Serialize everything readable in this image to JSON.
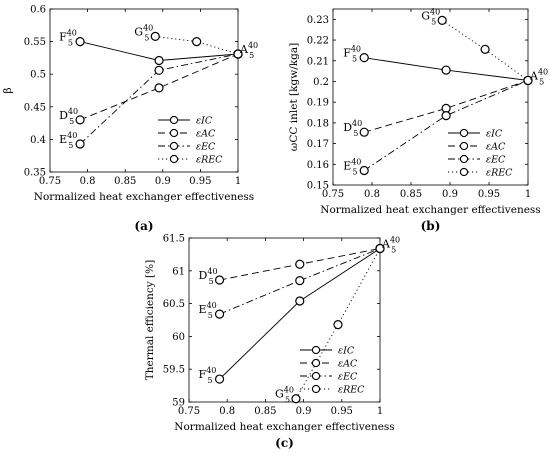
{
  "chart_data": [
    {
      "type": "line",
      "panel_label": "(a)",
      "xlabel": "Normalized heat exchanger effectiveness",
      "ylabel": "β",
      "xlim": [
        0.75,
        1.0
      ],
      "ylim": [
        0.35,
        0.6
      ],
      "xticks": [
        "0.75",
        "0.8",
        "0.85",
        "0.9",
        "0.95",
        "1"
      ],
      "yticks": [
        "0.35",
        "0.4",
        "0.45",
        "0.5",
        "0.55",
        "0.6"
      ],
      "legend": {
        "placement": "bottom-right",
        "entries": [
          "εIC",
          "εAC",
          "εEC",
          "εREC"
        ]
      },
      "series": [
        {
          "name": "εIC",
          "style": "solid",
          "x": [
            0.79,
            0.895,
            1.0
          ],
          "y": [
            0.55,
            0.521,
            0.531
          ]
        },
        {
          "name": "εAC",
          "style": "dashed",
          "x": [
            0.79,
            0.895,
            1.0
          ],
          "y": [
            0.43,
            0.479,
            0.531
          ]
        },
        {
          "name": "εEC",
          "style": "dashdot",
          "x": [
            0.79,
            0.895,
            1.0
          ],
          "y": [
            0.393,
            0.506,
            0.531
          ]
        },
        {
          "name": "εREC",
          "style": "dotted",
          "x": [
            0.89,
            0.945,
            1.0
          ],
          "y": [
            0.558,
            0.55,
            0.531
          ]
        }
      ],
      "point_labels": [
        {
          "base": "F",
          "sup": "40",
          "sub": "5",
          "x": 0.79,
          "y": 0.55,
          "side": "left"
        },
        {
          "base": "D",
          "sup": "40",
          "sub": "5",
          "x": 0.79,
          "y": 0.43,
          "side": "left"
        },
        {
          "base": "E",
          "sup": "40",
          "sub": "5",
          "x": 0.79,
          "y": 0.393,
          "side": "left"
        },
        {
          "base": "G",
          "sup": "40",
          "sub": "5",
          "x": 0.89,
          "y": 0.558,
          "side": "left"
        },
        {
          "base": "A",
          "sup": "40",
          "sub": "5",
          "x": 1.0,
          "y": 0.531,
          "side": "right"
        }
      ]
    },
    {
      "type": "line",
      "panel_label": "(b)",
      "xlabel": "Normalized heat exchanger effectiveness",
      "ylabel": "ωCC inlet [kgw/kga]",
      "xlim": [
        0.75,
        1.0
      ],
      "ylim": [
        0.15,
        0.235
      ],
      "xticks": [
        "0.75",
        "0.8",
        "0.85",
        "0.9",
        "0.95",
        "1"
      ],
      "yticks": [
        "0.15",
        "0.16",
        "0.17",
        "0.18",
        "0.19",
        "0.2",
        "0.21",
        "0.22",
        "0.23"
      ],
      "legend": {
        "placement": "bottom-right",
        "entries": [
          "εIC",
          "εAC",
          "εEC",
          "εREC"
        ]
      },
      "series": [
        {
          "name": "εIC",
          "style": "solid",
          "x": [
            0.79,
            0.895,
            1.0
          ],
          "y": [
            0.2115,
            0.2055,
            0.2005
          ]
        },
        {
          "name": "εAC",
          "style": "dashed",
          "x": [
            0.79,
            0.895,
            1.0
          ],
          "y": [
            0.1755,
            0.187,
            0.2005
          ]
        },
        {
          "name": "εEC",
          "style": "dashdot",
          "x": [
            0.79,
            0.895,
            1.0
          ],
          "y": [
            0.157,
            0.1835,
            0.2005
          ]
        },
        {
          "name": "εREC",
          "style": "dotted",
          "x": [
            0.89,
            0.945,
            1.0
          ],
          "y": [
            0.2295,
            0.2155,
            0.2005
          ]
        }
      ],
      "point_labels": [
        {
          "base": "F",
          "sup": "40",
          "sub": "5",
          "x": 0.79,
          "y": 0.2115,
          "side": "left"
        },
        {
          "base": "D",
          "sup": "40",
          "sub": "5",
          "x": 0.79,
          "y": 0.1755,
          "side": "left"
        },
        {
          "base": "E",
          "sup": "40",
          "sub": "5",
          "x": 0.79,
          "y": 0.157,
          "side": "left"
        },
        {
          "base": "G",
          "sup": "40",
          "sub": "5",
          "x": 0.89,
          "y": 0.2295,
          "side": "left"
        },
        {
          "base": "A",
          "sup": "40",
          "sub": "5",
          "x": 1.0,
          "y": 0.2005,
          "side": "right"
        }
      ]
    },
    {
      "type": "line",
      "panel_label": "(c)",
      "xlabel": "Normalized heat exchanger effectiveness",
      "ylabel": "Thermal efficiency [%]",
      "xlim": [
        0.75,
        1.0
      ],
      "ylim": [
        59,
        61.5
      ],
      "xticks": [
        "0.75",
        "0.8",
        "0.85",
        "0.9",
        "0.95",
        "1"
      ],
      "yticks": [
        "59",
        "59.5",
        "60",
        "60.5",
        "61",
        "61.5"
      ],
      "legend": {
        "placement": "bottom-right",
        "entries": [
          "εIC",
          "εAC",
          "εEC",
          "εREC"
        ]
      },
      "series": [
        {
          "name": "εIC",
          "style": "solid",
          "x": [
            0.79,
            0.895,
            1.0
          ],
          "y": [
            59.35,
            60.54,
            61.34
          ]
        },
        {
          "name": "εAC",
          "style": "dashed",
          "x": [
            0.79,
            0.895,
            1.0
          ],
          "y": [
            60.86,
            61.1,
            61.34
          ]
        },
        {
          "name": "εEC",
          "style": "dashdot",
          "x": [
            0.79,
            0.895,
            1.0
          ],
          "y": [
            60.34,
            60.85,
            61.34
          ]
        },
        {
          "name": "εREC",
          "style": "dotted",
          "x": [
            0.89,
            0.945,
            1.0
          ],
          "y": [
            59.05,
            60.18,
            61.34
          ]
        }
      ],
      "point_labels": [
        {
          "base": "F",
          "sup": "40",
          "sub": "5",
          "x": 0.79,
          "y": 59.35,
          "side": "left"
        },
        {
          "base": "D",
          "sup": "40",
          "sub": "5",
          "x": 0.79,
          "y": 60.86,
          "side": "left"
        },
        {
          "base": "E",
          "sup": "40",
          "sub": "5",
          "x": 0.79,
          "y": 60.34,
          "side": "left"
        },
        {
          "base": "G",
          "sup": "40",
          "sub": "5",
          "x": 0.89,
          "y": 59.05,
          "side": "left"
        },
        {
          "base": "A",
          "sup": "40",
          "sub": "5",
          "x": 1.0,
          "y": 61.34,
          "side": "right"
        }
      ]
    }
  ]
}
